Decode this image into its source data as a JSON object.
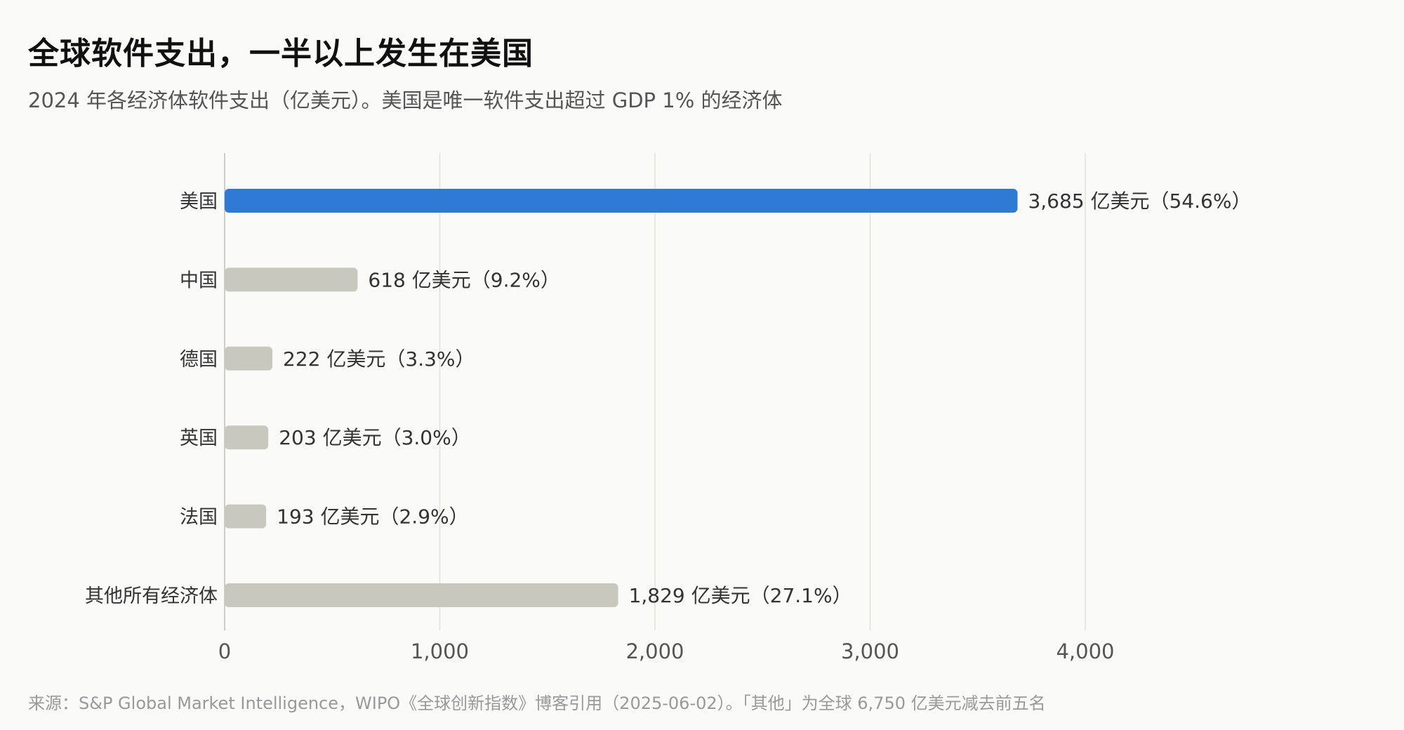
{
  "header": {
    "title": "全球软件支出，一半以上发生在美国",
    "subtitle": "2024 年各经济体软件支出（亿美元）。美国是唯一软件支出超过 GDP 1% 的经济体"
  },
  "footer": {
    "source": "来源：S&P Global Market Intelligence，WIPO《全球创新指数》博客引用（2025-06-02）。「其他」为全球 6,750 亿美元减去前五名"
  },
  "colors": {
    "highlight": "#2f7ad4",
    "bar": "#c9c8bf",
    "grid": "#e2e1d9",
    "axis": "#cfcec6",
    "text": "#333333",
    "tick": "#555555"
  },
  "chart_data": {
    "type": "bar",
    "orientation": "horizontal",
    "unit": "亿美元",
    "categories": [
      "美国",
      "中国",
      "德国",
      "英国",
      "法国",
      "其他所有经济体"
    ],
    "values": [
      3685,
      618,
      222,
      203,
      193,
      1829
    ],
    "shares": [
      "54.6%",
      "9.2%",
      "3.3%",
      "3.0%",
      "2.9%",
      "27.1%"
    ],
    "data_labels": [
      "3,685 亿美元（54.6%）",
      "618 亿美元（9.2%）",
      "222 亿美元（3.3%）",
      "203 亿美元（3.0%）",
      "193 亿美元（2.9%）",
      "1,829 亿美元（27.1%）"
    ],
    "highlight_category": "美国",
    "xlim": [
      0,
      4000
    ],
    "x_ticks": [
      0,
      1000,
      2000,
      3000,
      4000
    ],
    "x_tick_labels": [
      "0",
      "1,000",
      "2,000",
      "3,000",
      "4,000"
    ],
    "grid": true,
    "legend": "none"
  }
}
